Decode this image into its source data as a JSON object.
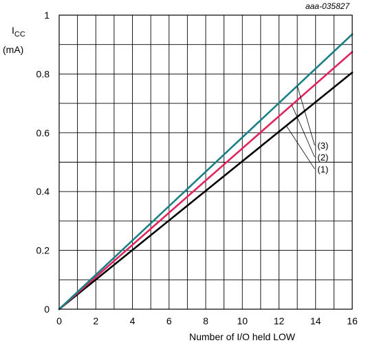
{
  "figure_id": "aaa-035827",
  "chart_data": {
    "type": "line",
    "xlabel": "Number of I/O held LOW",
    "ylabel": {
      "symbol": "I",
      "subscript": "CC",
      "unit": "(mA)"
    },
    "xlim": [
      0,
      16
    ],
    "ylim": [
      0,
      1
    ],
    "xticks": [
      0,
      2,
      4,
      6,
      8,
      10,
      12,
      14,
      16
    ],
    "yticks": [
      0,
      0.2,
      0.4,
      0.6,
      0.8,
      1
    ],
    "ytick_labels": [
      "0",
      "0.2",
      "0.4",
      "0.6",
      "0.8",
      "1"
    ],
    "x_minor_step": 1,
    "y_minor_step": 0.1,
    "grid": true,
    "legend": "none",
    "series": [
      {
        "label": "(1)",
        "color": "#000000",
        "x": [
          0,
          16
        ],
        "y": [
          0,
          0.805
        ]
      },
      {
        "label": "(2)",
        "color": "#e0245e",
        "x": [
          0,
          16
        ],
        "y": [
          0,
          0.875
        ]
      },
      {
        "label": "(3)",
        "color": "#1a7f86",
        "x": [
          0,
          16
        ],
        "y": [
          0,
          0.935
        ]
      }
    ]
  }
}
